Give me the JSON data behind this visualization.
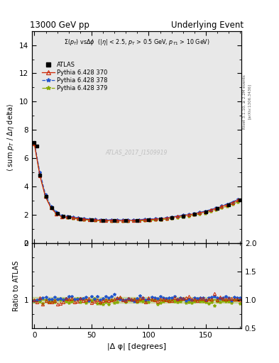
{
  "title_left": "13000 GeV pp",
  "title_right": "Underlying Event",
  "subtitle": "Σ(p_{T}) vsΔφ  (|η| < 2.5, p_{T} > 0.5 GeV, p_{T1} > 10 GeV)",
  "ylabel_main": "⟨ sum p_T / Δη delta⟩",
  "ylabel_ratio": "Ratio to ATLAS",
  "xlabel": "|Δ φ| [degrees]",
  "right_label_top": "Rivet 3.1.10, ≥ 2.2M events",
  "right_label_bot": "[arXiv:1306.3436]",
  "watermark": "ATLAS_2017_I1509919",
  "ylim_main": [
    0,
    15
  ],
  "ylim_ratio": [
    0.5,
    2.0
  ],
  "yticks_main": [
    0,
    2,
    4,
    6,
    8,
    10,
    12,
    14
  ],
  "yticks_ratio_left": [
    1.0,
    2.0
  ],
  "yticks_ratio_right": [
    0.5,
    1.0,
    1.5,
    2.0
  ],
  "xlim": [
    -2,
    181
  ],
  "xticks": [
    0,
    50,
    100,
    150
  ],
  "bg_color": "#e8e8e8",
  "atlas_color": "#000000",
  "py370_color": "#cc2200",
  "py378_color": "#2255cc",
  "py379_color": "#88aa00",
  "phi_pts": [
    0,
    2,
    5,
    10,
    15,
    20,
    25,
    30,
    40,
    50,
    60,
    70,
    80,
    90,
    100,
    110,
    120,
    130,
    140,
    150,
    160,
    170,
    180
  ],
  "atlas_main": [
    7.1,
    6.85,
    4.8,
    3.3,
    2.5,
    2.1,
    1.9,
    1.85,
    1.72,
    1.65,
    1.62,
    1.6,
    1.6,
    1.62,
    1.65,
    1.7,
    1.8,
    1.92,
    2.05,
    2.2,
    2.45,
    2.72,
    3.05
  ]
}
